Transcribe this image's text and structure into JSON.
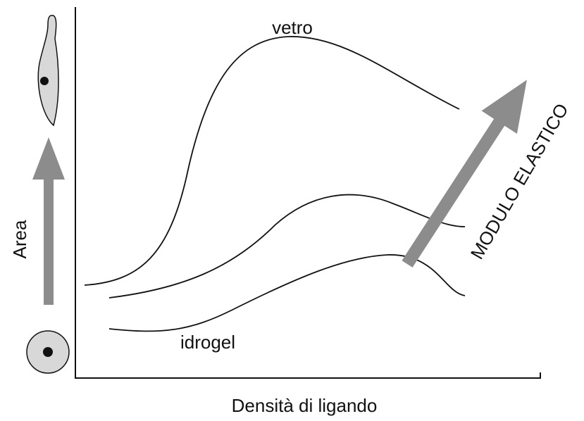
{
  "labels": {
    "top_curve": "vetro",
    "bottom_curve": "idrogel",
    "y_axis": "Area",
    "x_axis": "Densità di ligando",
    "arrow": "MODULO ELASTICO"
  }
}
